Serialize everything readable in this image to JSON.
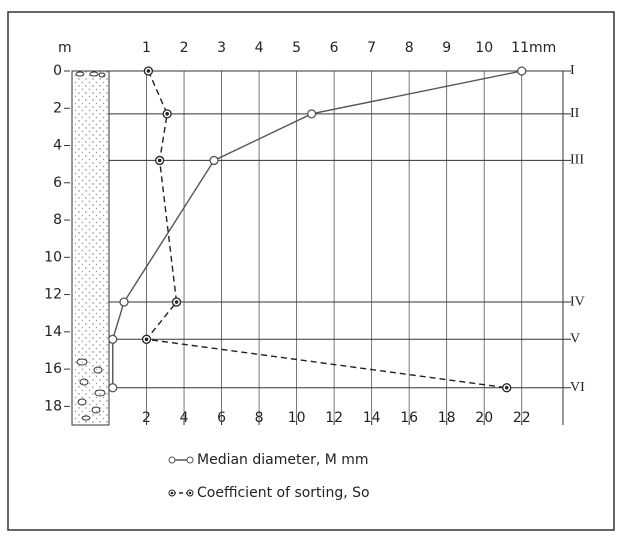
{
  "chart_data": {
    "type": "line",
    "y_label": "m",
    "ylim": [
      0,
      19
    ],
    "yticks": [
      0,
      2,
      4,
      6,
      8,
      10,
      12,
      14,
      16,
      18
    ],
    "y_inverted": true,
    "xlim": [
      0,
      12.1
    ],
    "xticks": [
      1,
      2,
      3,
      4,
      5,
      6,
      7,
      8,
      9,
      10,
      {
        "value": 11,
        "label": "11mm"
      }
    ],
    "x2lim": [
      0,
      24.2
    ],
    "x2ticks": [
      2,
      4,
      6,
      8,
      10,
      12,
      14,
      16,
      18,
      20,
      22
    ],
    "grid": true,
    "layers": [
      {
        "label": "I",
        "depth": 0
      },
      {
        "label": "II",
        "depth": 2.3
      },
      {
        "label": "III",
        "depth": 4.8
      },
      {
        "label": "IV",
        "depth": 12.4
      },
      {
        "label": "V",
        "depth": 14.4
      },
      {
        "label": "VI",
        "depth": 17
      }
    ],
    "depths": [
      0,
      2.3,
      4.8,
      12.4,
      14.4,
      17
    ],
    "series": [
      {
        "name": "Median diameter, M mm",
        "color": "#555555",
        "dashed": false,
        "marker": "open",
        "axis": "x",
        "values": [
          11,
          5.4,
          2.8,
          0.4,
          0.1,
          0.1
        ]
      },
      {
        "name": "Coefficient of sorting, So",
        "color": "#222222",
        "dashed": true,
        "marker": "dot",
        "axis": "x2",
        "depths_index": [
          0,
          1,
          2,
          3,
          4,
          5
        ],
        "values": [
          2.1,
          3.1,
          2.7,
          3.6,
          2.0,
          21.2
        ]
      }
    ]
  }
}
